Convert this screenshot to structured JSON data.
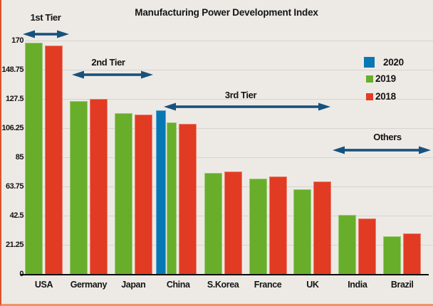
{
  "title": "Manufacturing Power Development Index",
  "colors": {
    "background": "#edeae5",
    "gridline": "#d6d4cf",
    "series_2020": "#0878b4",
    "series_2019": "#68ae2b",
    "series_2018": "#e23b23",
    "arrow": "#17527e",
    "text": "#141414",
    "edge_accent": "#e2512b"
  },
  "legend": [
    {
      "label": "2020",
      "color": "#0878b4"
    },
    {
      "label": "2019",
      "color": "#68ae2b"
    },
    {
      "label": "2018",
      "color": "#e23b23"
    }
  ],
  "y_axis": {
    "tick_labels": [
      "170",
      "148.75",
      "127.5",
      "106.25",
      "85",
      "63.75",
      "42.5",
      "21.25",
      "0"
    ],
    "tick_values": [
      170,
      148.75,
      127.5,
      106.25,
      85,
      63.75,
      42.5,
      21.25,
      0
    ]
  },
  "tier_annotations": [
    {
      "label": "1st Tier",
      "spans": [
        "USA"
      ]
    },
    {
      "label": "2nd Tier",
      "spans": [
        "Germany",
        "Japan"
      ]
    },
    {
      "label": "3rd Tier",
      "spans": [
        "China",
        "S.Korea",
        "France",
        "UK"
      ]
    },
    {
      "label": "Others",
      "spans": [
        "India",
        "Brazil"
      ]
    }
  ],
  "chart_data": {
    "type": "bar",
    "title": "Manufacturing Power Development Index",
    "categories": [
      "USA",
      "Germany",
      "Japan",
      "China",
      "S.Korea",
      "France",
      "UK",
      "India",
      "Brazil"
    ],
    "series": [
      {
        "name": "2020",
        "color": "#0878b4",
        "values": [
          null,
          null,
          null,
          119.0,
          null,
          null,
          null,
          null,
          null
        ]
      },
      {
        "name": "2019",
        "color": "#68ae2b",
        "values": [
          168.7,
          125.9,
          117.1,
          110.5,
          73.7,
          69.4,
          61.9,
          42.8,
          27.7
        ]
      },
      {
        "name": "2018",
        "color": "#e23b23",
        "values": [
          166.4,
          127.5,
          116.0,
          109.6,
          74.6,
          71.1,
          67.5,
          40.2,
          29.5
        ]
      }
    ],
    "ylim": [
      0,
      170
    ],
    "grid": true,
    "legend_position": "upper right",
    "xlabel": "",
    "ylabel": ""
  }
}
